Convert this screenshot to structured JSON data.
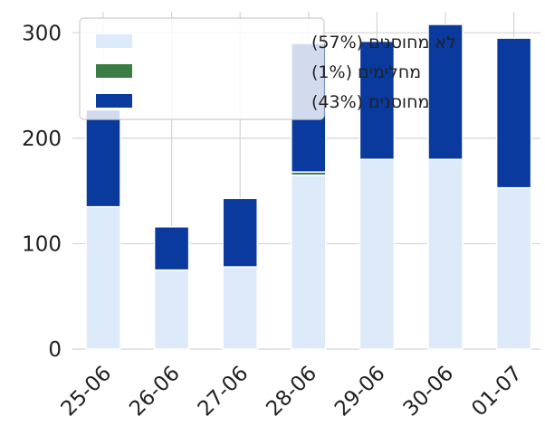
{
  "chart_data": {
    "type": "bar",
    "stacked": true,
    "title": "",
    "xlabel": "",
    "ylabel": "",
    "ylim": [
      0,
      320
    ],
    "yticks": [
      0,
      100,
      200,
      300
    ],
    "grid": true,
    "legend_position": "top-left",
    "categories": [
      "25-06",
      "26-06",
      "27-06",
      "28-06",
      "29-06",
      "30-06",
      "01-07"
    ],
    "series": [
      {
        "name": "לא מחוסנים (57%)",
        "color": "#ddeafa",
        "values": [
          135,
          75,
          78,
          165,
          180,
          180,
          153
        ]
      },
      {
        "name": "מחלימים (1%)",
        "color": "#3a7d44",
        "values": [
          0,
          0,
          0,
          3,
          0,
          0,
          0
        ]
      },
      {
        "name": "מחוסנים (43%)",
        "color": "#0a3a9e",
        "values": [
          92,
          41,
          65,
          122,
          112,
          128,
          142
        ]
      }
    ]
  }
}
